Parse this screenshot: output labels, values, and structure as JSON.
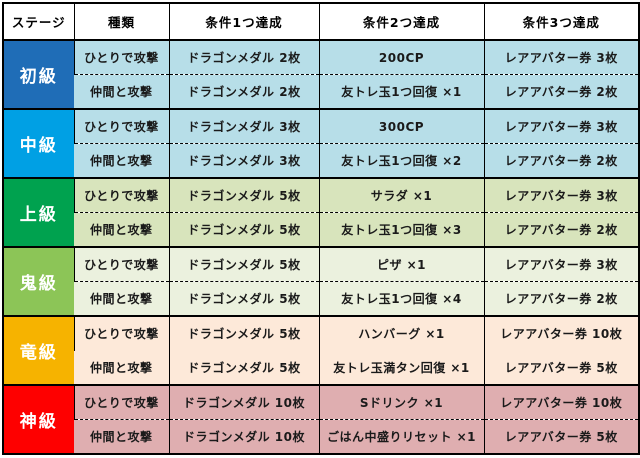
{
  "table": {
    "headers": [
      "ステージ",
      "種類",
      "条件1つ達成",
      "条件2つ達成",
      "条件3つ達成"
    ],
    "stages": [
      {
        "name": "初級",
        "color": "#1F6DB7",
        "cell_bg": "#B7DEE8",
        "dashed_divider": true,
        "rows": [
          {
            "type": "ひとりで攻撃",
            "cond1": "ドラゴンメダル 2枚",
            "cond2": "200CP",
            "cond3": "レアアバター券 3枚"
          },
          {
            "type": "仲間と攻撃",
            "cond1": "ドラゴンメダル 2枚",
            "cond2": "友トレ玉1つ回復 ×1",
            "cond3": "レアアバター券 2枚"
          }
        ]
      },
      {
        "name": "中級",
        "color": "#00A0E4",
        "cell_bg": "#B7DEE8",
        "dashed_divider": true,
        "rows": [
          {
            "type": "ひとりで攻撃",
            "cond1": "ドラゴンメダル 3枚",
            "cond2": "300CP",
            "cond3": "レアアバター券 3枚"
          },
          {
            "type": "仲間と攻撃",
            "cond1": "ドラゴンメダル 3枚",
            "cond2": "友トレ玉1つ回復 ×2",
            "cond3": "レアアバター券 2枚"
          }
        ]
      },
      {
        "name": "上級",
        "color": "#00A24F",
        "cell_bg": "#D8E4BC",
        "dashed_divider": true,
        "rows": [
          {
            "type": "ひとりで攻撃",
            "cond1": "ドラゴンメダル 5枚",
            "cond2": "サラダ ×1",
            "cond3": "レアアバター券 3枚"
          },
          {
            "type": "仲間と攻撃",
            "cond1": "ドラゴンメダル 5枚",
            "cond2": "友トレ玉1つ回復 ×3",
            "cond3": "レアアバター券 2枚"
          }
        ]
      },
      {
        "name": "鬼級",
        "color": "#8CC557",
        "cell_bg": "#EBF1DE",
        "dashed_divider": true,
        "rows": [
          {
            "type": "ひとりで攻撃",
            "cond1": "ドラゴンメダル 5枚",
            "cond2": "ピザ ×1",
            "cond3": "レアアバター券 3枚"
          },
          {
            "type": "仲間と攻撃",
            "cond1": "ドラゴンメダル 5枚",
            "cond2": "友トレ玉1つ回復 ×4",
            "cond3": "レアアバター券 2枚"
          }
        ]
      },
      {
        "name": "竜級",
        "color": "#F6B300",
        "cell_bg": "#FDE9D9",
        "dashed_divider": false,
        "rows": [
          {
            "type": "ひとりで攻撃",
            "cond1": "ドラゴンメダル 5枚",
            "cond2": "ハンバーグ ×1",
            "cond3": "レアアバター券 10枚"
          },
          {
            "type": "仲間と攻撃",
            "cond1": "ドラゴンメダル 5枚",
            "cond2": "友トレ玉満タン回復 ×1",
            "cond3": "レアアバター券 5枚"
          }
        ]
      },
      {
        "name": "神級",
        "color": "#FE0000",
        "cell_bg": "#DFAEB0",
        "dashed_divider": true,
        "rows": [
          {
            "type": "ひとりで攻撃",
            "cond1": "ドラゴンメダル 10枚",
            "cond2": "Sドリンク ×1",
            "cond3": "レアアバター券 10枚"
          },
          {
            "type": "仲間と攻撃",
            "cond1": "ドラゴンメダル 10枚",
            "cond2": "ごはん中盛りリセット ×1",
            "cond3": "レアアバター券 5枚"
          }
        ]
      }
    ]
  }
}
